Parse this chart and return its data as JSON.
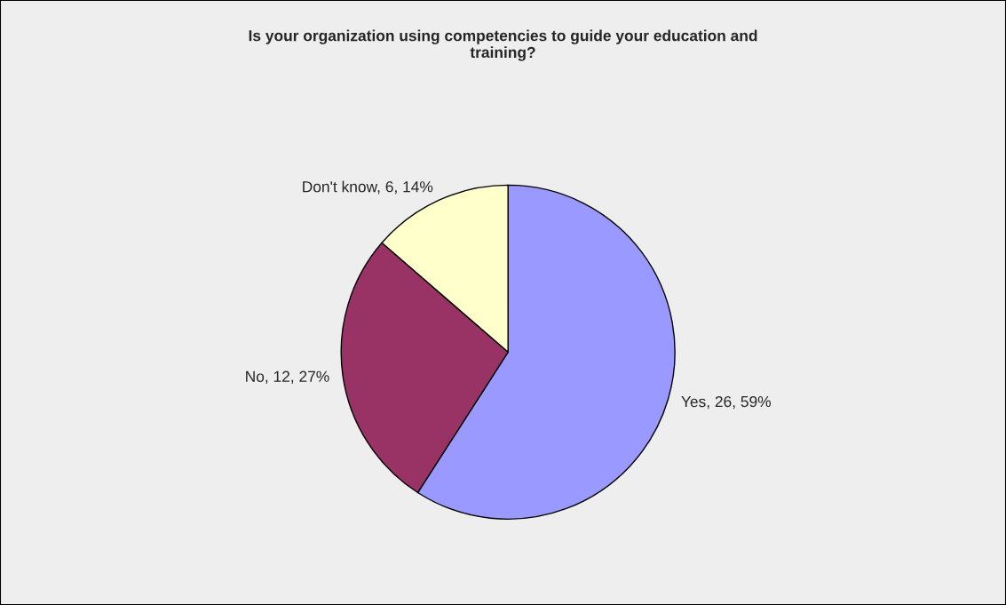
{
  "chart_data": {
    "type": "pie",
    "title": "Is your organization using competencies to guide your education and\ntraining?",
    "categories": [
      "Yes",
      "No",
      "Don't know"
    ],
    "values": [
      26,
      12,
      6
    ],
    "colors": [
      "#9999ff",
      "#993366",
      "#ffffcc"
    ],
    "value_labels": [
      "26, 59%",
      "12, 27%",
      "6, 14%"
    ],
    "legend": false
  }
}
